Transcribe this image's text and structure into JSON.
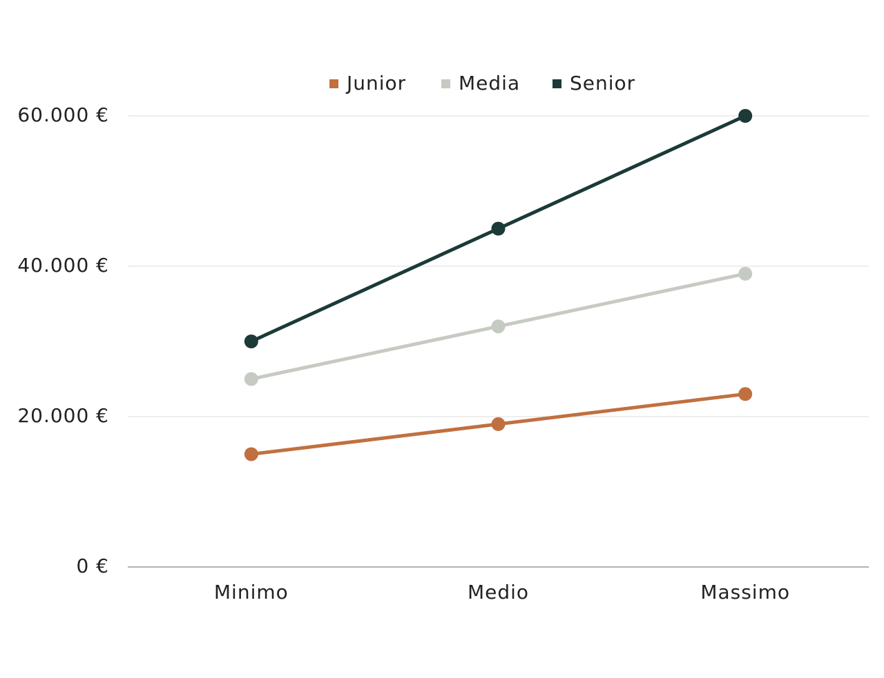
{
  "chart_data": {
    "type": "line",
    "categories": [
      "Minimo",
      "Medio",
      "Massimo"
    ],
    "series": [
      {
        "name": "Junior",
        "color": "#c0703f",
        "values": [
          15000,
          19000,
          23000
        ]
      },
      {
        "name": "Media",
        "color": "#c5cbc3",
        "values": [
          25000,
          32000,
          39000
        ]
      },
      {
        "name": "Senior",
        "color": "#1b3a38",
        "values": [
          30000,
          45000,
          60000
        ]
      }
    ],
    "ylim": [
      0,
      60000
    ],
    "yticks": [
      {
        "value": 0,
        "label": "0 €"
      },
      {
        "value": 20000,
        "label": "20.000 €"
      },
      {
        "value": 40000,
        "label": "40.000 €"
      },
      {
        "value": 60000,
        "label": "60.000 €"
      }
    ],
    "grid": true,
    "legend": "top"
  }
}
